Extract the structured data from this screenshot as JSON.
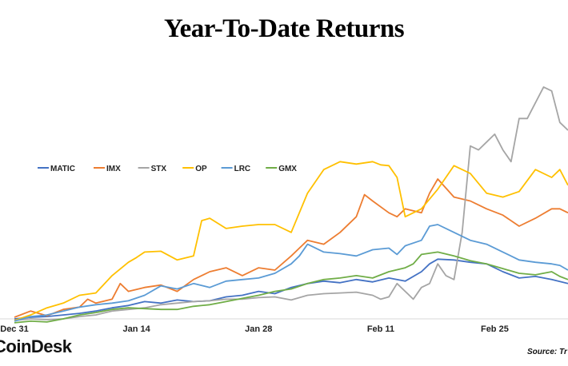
{
  "header": {
    "title": "Year-To-Date Returns"
  },
  "footer": {
    "brand": "CoinDesk",
    "source": "Source: Tr"
  },
  "chart_data": {
    "type": "line",
    "title": "Year-To-Date Returns",
    "xlabel": "",
    "ylabel": "",
    "grid": false,
    "legend_position": "middle-left",
    "x_range": [
      0,
      68
    ],
    "y_range": [
      0,
      300
    ],
    "x_ticks": [
      {
        "label": "Dec 31",
        "x": 0
      },
      {
        "label": "Jan 14",
        "x": 15
      },
      {
        "label": "Jan 28",
        "x": 30
      },
      {
        "label": "Feb 11",
        "x": 45
      },
      {
        "label": "Feb 25",
        "x": 59
      }
    ],
    "series": [
      {
        "name": "MATIC",
        "color": "#4472C4",
        "points": [
          [
            0,
            0
          ],
          [
            2,
            2
          ],
          [
            4,
            3
          ],
          [
            6,
            5
          ],
          [
            8,
            7
          ],
          [
            10,
            10
          ],
          [
            12,
            14
          ],
          [
            14,
            17
          ],
          [
            16,
            22
          ],
          [
            18,
            20
          ],
          [
            20,
            24
          ],
          [
            22,
            22
          ],
          [
            24,
            23
          ],
          [
            26,
            28
          ],
          [
            28,
            30
          ],
          [
            30,
            35
          ],
          [
            32,
            32
          ],
          [
            34,
            40
          ],
          [
            36,
            45
          ],
          [
            38,
            48
          ],
          [
            40,
            46
          ],
          [
            42,
            50
          ],
          [
            44,
            47
          ],
          [
            46,
            52
          ],
          [
            48,
            48
          ],
          [
            50,
            60
          ],
          [
            51,
            70
          ],
          [
            52,
            76
          ],
          [
            54,
            75
          ],
          [
            56,
            72
          ],
          [
            58,
            70
          ],
          [
            60,
            60
          ],
          [
            62,
            52
          ],
          [
            64,
            54
          ],
          [
            66,
            50
          ],
          [
            68,
            45
          ]
        ]
      },
      {
        "name": "IMX",
        "color": "#ED7D31",
        "points": [
          [
            0,
            2
          ],
          [
            2,
            10
          ],
          [
            4,
            4
          ],
          [
            6,
            12
          ],
          [
            8,
            15
          ],
          [
            9,
            25
          ],
          [
            10,
            20
          ],
          [
            12,
            25
          ],
          [
            13,
            45
          ],
          [
            14,
            35
          ],
          [
            16,
            40
          ],
          [
            18,
            43
          ],
          [
            20,
            35
          ],
          [
            22,
            50
          ],
          [
            24,
            60
          ],
          [
            26,
            65
          ],
          [
            28,
            55
          ],
          [
            30,
            65
          ],
          [
            32,
            62
          ],
          [
            34,
            80
          ],
          [
            35,
            90
          ],
          [
            36,
            100
          ],
          [
            38,
            95
          ],
          [
            40,
            110
          ],
          [
            42,
            130
          ],
          [
            43,
            158
          ],
          [
            44,
            150
          ],
          [
            46,
            135
          ],
          [
            47,
            130
          ],
          [
            48,
            140
          ],
          [
            50,
            135
          ],
          [
            51,
            160
          ],
          [
            52,
            178
          ],
          [
            54,
            155
          ],
          [
            56,
            150
          ],
          [
            58,
            140
          ],
          [
            60,
            132
          ],
          [
            62,
            118
          ],
          [
            64,
            128
          ],
          [
            66,
            140
          ],
          [
            67,
            140
          ],
          [
            68,
            135
          ]
        ]
      },
      {
        "name": "STX",
        "color": "#A5A5A5",
        "points": [
          [
            0,
            -2
          ],
          [
            2,
            0
          ],
          [
            4,
            -1
          ],
          [
            6,
            0
          ],
          [
            8,
            3
          ],
          [
            10,
            5
          ],
          [
            12,
            10
          ],
          [
            14,
            12
          ],
          [
            16,
            14
          ],
          [
            18,
            18
          ],
          [
            20,
            20
          ],
          [
            22,
            22
          ],
          [
            24,
            23
          ],
          [
            26,
            25
          ],
          [
            28,
            25
          ],
          [
            30,
            27
          ],
          [
            32,
            28
          ],
          [
            34,
            24
          ],
          [
            36,
            30
          ],
          [
            38,
            32
          ],
          [
            40,
            33
          ],
          [
            42,
            34
          ],
          [
            44,
            30
          ],
          [
            45,
            25
          ],
          [
            46,
            28
          ],
          [
            47,
            45
          ],
          [
            48,
            35
          ],
          [
            49,
            25
          ],
          [
            50,
            40
          ],
          [
            51,
            45
          ],
          [
            52,
            70
          ],
          [
            53,
            55
          ],
          [
            54,
            50
          ],
          [
            55,
            110
          ],
          [
            56,
            220
          ],
          [
            57,
            215
          ],
          [
            58,
            225
          ],
          [
            59,
            235
          ],
          [
            60,
            215
          ],
          [
            61,
            200
          ],
          [
            62,
            255
          ],
          [
            63,
            255
          ],
          [
            64,
            275
          ],
          [
            65,
            295
          ],
          [
            66,
            290
          ],
          [
            67,
            250
          ],
          [
            68,
            240
          ]
        ]
      },
      {
        "name": "OP",
        "color": "#FFC000",
        "points": [
          [
            0,
            -2
          ],
          [
            2,
            5
          ],
          [
            4,
            14
          ],
          [
            6,
            20
          ],
          [
            8,
            30
          ],
          [
            10,
            33
          ],
          [
            12,
            55
          ],
          [
            14,
            72
          ],
          [
            15,
            78
          ],
          [
            16,
            85
          ],
          [
            18,
            86
          ],
          [
            20,
            75
          ],
          [
            22,
            80
          ],
          [
            23,
            125
          ],
          [
            24,
            128
          ],
          [
            26,
            115
          ],
          [
            28,
            118
          ],
          [
            30,
            120
          ],
          [
            32,
            120
          ],
          [
            34,
            110
          ],
          [
            36,
            160
          ],
          [
            38,
            190
          ],
          [
            40,
            200
          ],
          [
            42,
            197
          ],
          [
            44,
            200
          ],
          [
            45,
            196
          ],
          [
            46,
            195
          ],
          [
            47,
            180
          ],
          [
            48,
            130
          ],
          [
            50,
            140
          ],
          [
            52,
            165
          ],
          [
            54,
            195
          ],
          [
            56,
            185
          ],
          [
            58,
            160
          ],
          [
            60,
            155
          ],
          [
            62,
            162
          ],
          [
            64,
            190
          ],
          [
            66,
            180
          ],
          [
            67,
            190
          ],
          [
            68,
            170
          ]
        ]
      },
      {
        "name": "LRC",
        "color": "#5B9BD5",
        "points": [
          [
            0,
            -3
          ],
          [
            2,
            3
          ],
          [
            4,
            5
          ],
          [
            6,
            10
          ],
          [
            8,
            15
          ],
          [
            10,
            18
          ],
          [
            12,
            20
          ],
          [
            14,
            23
          ],
          [
            16,
            30
          ],
          [
            18,
            42
          ],
          [
            20,
            38
          ],
          [
            22,
            45
          ],
          [
            24,
            40
          ],
          [
            26,
            48
          ],
          [
            28,
            50
          ],
          [
            30,
            52
          ],
          [
            32,
            58
          ],
          [
            34,
            70
          ],
          [
            35,
            80
          ],
          [
            36,
            95
          ],
          [
            38,
            85
          ],
          [
            40,
            83
          ],
          [
            42,
            80
          ],
          [
            44,
            88
          ],
          [
            46,
            90
          ],
          [
            47,
            82
          ],
          [
            48,
            93
          ],
          [
            50,
            100
          ],
          [
            51,
            118
          ],
          [
            52,
            120
          ],
          [
            54,
            110
          ],
          [
            56,
            100
          ],
          [
            58,
            95
          ],
          [
            60,
            85
          ],
          [
            62,
            75
          ],
          [
            64,
            72
          ],
          [
            66,
            70
          ],
          [
            67,
            68
          ],
          [
            68,
            62
          ]
        ]
      },
      {
        "name": "GMX",
        "color": "#70AD47",
        "points": [
          [
            0,
            -5
          ],
          [
            2,
            -3
          ],
          [
            4,
            -4
          ],
          [
            6,
            0
          ],
          [
            8,
            5
          ],
          [
            10,
            8
          ],
          [
            12,
            12
          ],
          [
            14,
            14
          ],
          [
            16,
            13
          ],
          [
            18,
            12
          ],
          [
            20,
            12
          ],
          [
            22,
            16
          ],
          [
            24,
            18
          ],
          [
            26,
            22
          ],
          [
            28,
            26
          ],
          [
            30,
            30
          ],
          [
            32,
            35
          ],
          [
            34,
            38
          ],
          [
            36,
            45
          ],
          [
            38,
            50
          ],
          [
            40,
            52
          ],
          [
            42,
            55
          ],
          [
            44,
            52
          ],
          [
            46,
            60
          ],
          [
            48,
            65
          ],
          [
            49,
            70
          ],
          [
            50,
            82
          ],
          [
            52,
            85
          ],
          [
            54,
            80
          ],
          [
            56,
            74
          ],
          [
            58,
            70
          ],
          [
            60,
            64
          ],
          [
            62,
            58
          ],
          [
            64,
            56
          ],
          [
            66,
            60
          ],
          [
            67,
            54
          ],
          [
            68,
            50
          ]
        ]
      }
    ]
  }
}
